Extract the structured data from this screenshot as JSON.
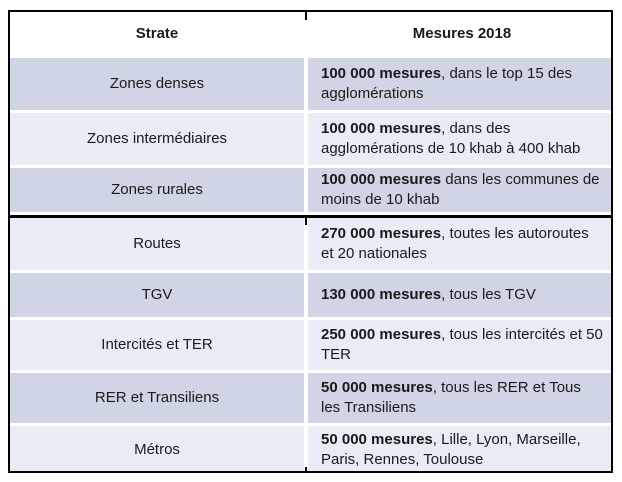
{
  "table": {
    "header": {
      "strate": "Strate",
      "mesures": "Mesures 2018"
    },
    "rows": [
      {
        "strate": "Zones denses",
        "mesures_bold": "100 000 mesures",
        "mesures_rest": ", dans le top 15 des agglomérations"
      },
      {
        "strate": "Zones intermédiaires",
        "mesures_bold": "100 000 mesures",
        "mesures_rest": ", dans des agglomérations de 10 khab à 400 khab"
      },
      {
        "strate": "Zones rurales",
        "mesures_bold": "100 000 mesures",
        "mesures_rest": " dans les communes de moins de 10 khab"
      },
      {
        "strate": "Routes",
        "mesures_bold": "270 000 mesures",
        "mesures_rest": ", toutes les autoroutes et 20 nationales"
      },
      {
        "strate": "TGV",
        "mesures_bold": "130 000 mesures",
        "mesures_rest": ", tous les TGV"
      },
      {
        "strate": "Intercités et TER",
        "mesures_bold": "250 000 mesures",
        "mesures_rest": ", tous les intercités et 50 TER"
      },
      {
        "strate": "RER et Transiliens",
        "mesures_bold": "50 000 mesures",
        "mesures_rest": ", tous les RER et Tous les Transiliens"
      },
      {
        "strate": "Métros",
        "mesures_bold": "50 000 mesures",
        "mesures_rest": ", Lille, Lyon, Marseille, Paris, Rennes, Toulouse"
      }
    ],
    "colors": {
      "row_shade_dark": "#cfd5e5",
      "row_shade_light": "#e9ecf5",
      "header_bg": "#ffffff",
      "border": "#000000",
      "text": "#1a1a1a"
    }
  }
}
